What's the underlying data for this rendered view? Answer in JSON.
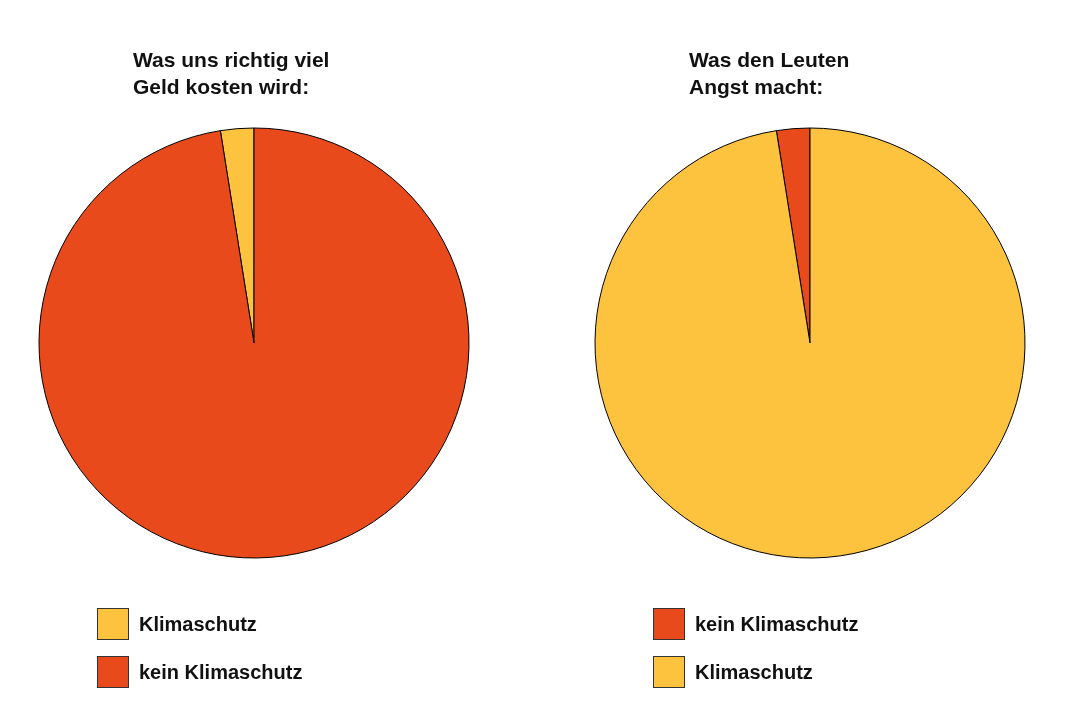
{
  "chart_data": [
    {
      "type": "pie",
      "title": "Was uns richtig viel\nGeld kosten wird:",
      "categories": [
        "Klimaschutz",
        "kein Klimaschutz"
      ],
      "values": [
        2.5,
        97.5
      ],
      "colors": [
        "#fdc33f",
        "#e84a1b"
      ],
      "legend": "bottom left"
    },
    {
      "type": "pie",
      "title": "Was den Leuten\nAngst macht:",
      "categories": [
        "kein Klimaschutz",
        "Klimaschutz"
      ],
      "values": [
        2.5,
        97.5
      ],
      "colors": [
        "#e84a1b",
        "#fdc33f"
      ],
      "legend": "bottom left"
    }
  ]
}
